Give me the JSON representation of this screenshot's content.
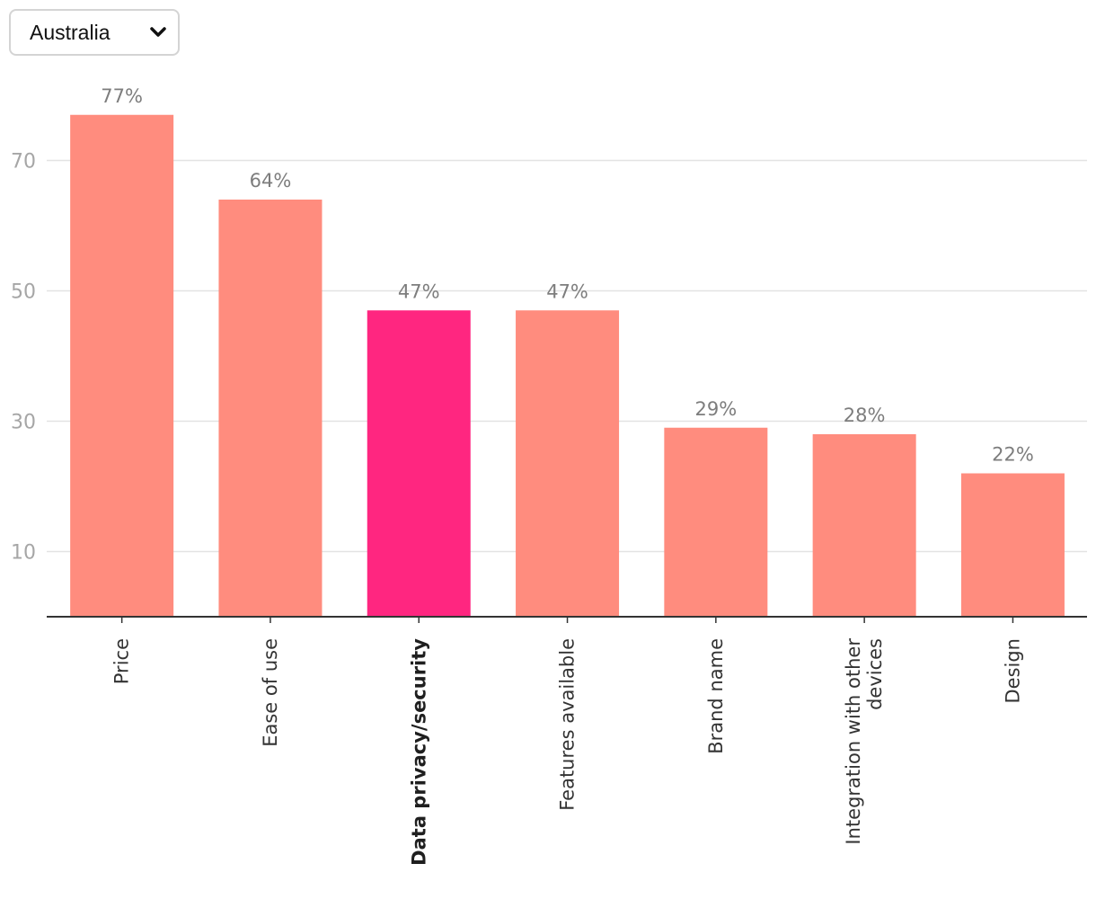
{
  "filter": {
    "selected": "Australia",
    "icon": "chevron-down-icon"
  },
  "colors": {
    "bar": "#ff8c7e",
    "highlight": "#ff2680",
    "grid": "#e3e3e3",
    "axis": "#333333"
  },
  "chart_data": {
    "type": "bar",
    "title": "",
    "xlabel": "",
    "ylabel": "",
    "categories": [
      "Price",
      "Ease of use",
      "Data privacy/security",
      "Features available",
      "Brand name",
      "Integration with other devices",
      "Design"
    ],
    "category_lines": [
      [
        "Price"
      ],
      [
        "Ease of use"
      ],
      [
        "Data privacy/security"
      ],
      [
        "Features available"
      ],
      [
        "Brand name"
      ],
      [
        "Integration with other",
        "devices"
      ],
      [
        "Design"
      ]
    ],
    "values": [
      77,
      64,
      47,
      47,
      29,
      28,
      22
    ],
    "value_labels": [
      "77%",
      "64%",
      "47%",
      "47%",
      "29%",
      "28%",
      "22%"
    ],
    "highlight_index": 2,
    "yticks": [
      10,
      30,
      50,
      70
    ],
    "ytick_labels": [
      "10",
      "30",
      "50",
      "70"
    ],
    "ylim": [
      0,
      80
    ],
    "grid": true,
    "legend": "none"
  }
}
